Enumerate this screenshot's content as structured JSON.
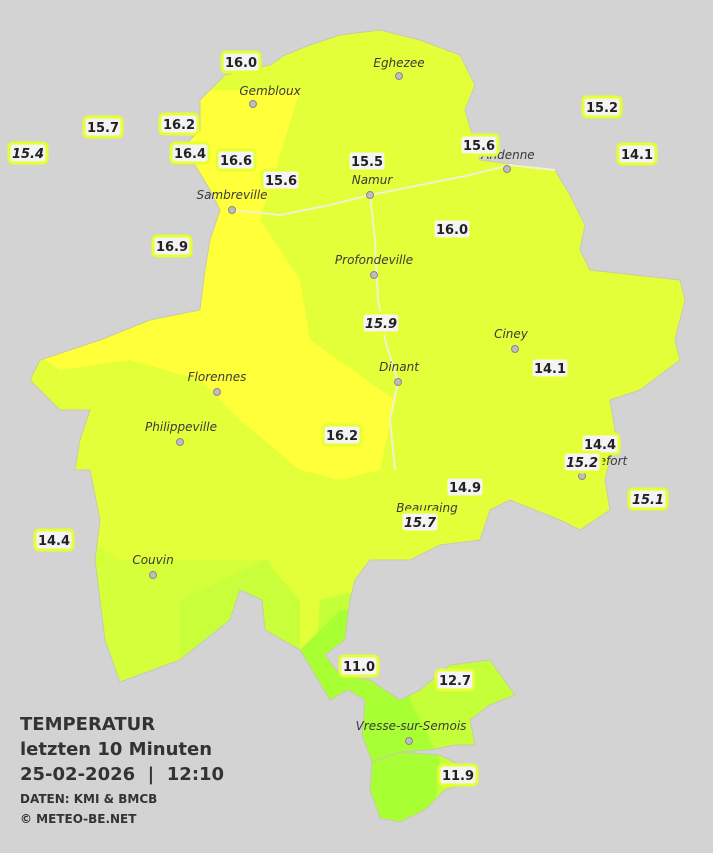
{
  "legend": {
    "title": "TEMPERATUR",
    "period": "letzten 10 Minuten",
    "datetime": "25-02-2026  |  12:10",
    "source": "DATEN: KMI & BMCB",
    "copyright": "© METEO-BE.NET"
  },
  "cities": [
    "Eghezee",
    "Gembloux",
    "Andenne",
    "Namur",
    "Sambreville",
    "Profondeville",
    "Ciney",
    "Dinant",
    "Florennes",
    "Philippeville",
    "Beauraing",
    "Rochefort",
    "Couvin",
    "Vresse-sur-Semois"
  ],
  "stations": [
    {
      "temp": "16.0",
      "italic": false
    },
    {
      "temp": "16.2",
      "italic": false
    },
    {
      "temp": "15.7",
      "italic": false
    },
    {
      "temp": "15.4",
      "italic": true
    },
    {
      "temp": "16.4",
      "italic": false
    },
    {
      "temp": "16.6",
      "italic": false
    },
    {
      "temp": "15.6",
      "italic": false
    },
    {
      "temp": "15.5",
      "italic": false
    },
    {
      "temp": "15.6",
      "italic": false
    },
    {
      "temp": "15.2",
      "italic": false
    },
    {
      "temp": "14.1",
      "italic": false
    },
    {
      "temp": "16.9",
      "italic": false
    },
    {
      "temp": "16.0",
      "italic": false
    },
    {
      "temp": "15.9",
      "italic": true
    },
    {
      "temp": "14.1",
      "italic": false
    },
    {
      "temp": "16.2",
      "italic": false
    },
    {
      "temp": "14.4",
      "italic": false
    },
    {
      "temp": "15.2",
      "italic": true
    },
    {
      "temp": "14.9",
      "italic": false
    },
    {
      "temp": "15.1",
      "italic": true
    },
    {
      "temp": "15.7",
      "italic": true
    },
    {
      "temp": "14.4",
      "italic": false
    },
    {
      "temp": "11.0",
      "italic": false
    },
    {
      "temp": "12.7",
      "italic": false
    },
    {
      "temp": "11.9",
      "italic": false
    }
  ]
}
